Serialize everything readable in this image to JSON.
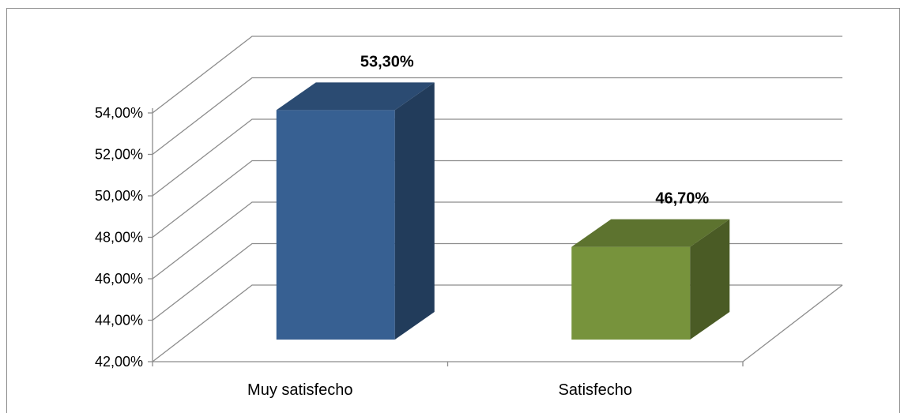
{
  "chart_data": {
    "type": "bar",
    "style": "3d-clustered-column",
    "categories": [
      "Muy satisfecho",
      "Satisfecho"
    ],
    "values": [
      53.3,
      46.7
    ],
    "data_labels": [
      "53,30%",
      "46,70%"
    ],
    "colors": [
      "#376092",
      "#77933c"
    ],
    "ylim": [
      42,
      54
    ],
    "yticks": [
      42,
      44,
      46,
      48,
      50,
      52,
      54
    ],
    "ytick_labels": [
      "42,00%",
      "44,00%",
      "46,00%",
      "48,00%",
      "50,00%",
      "52,00%",
      "54,00%"
    ],
    "grid": true,
    "legend": "none"
  }
}
